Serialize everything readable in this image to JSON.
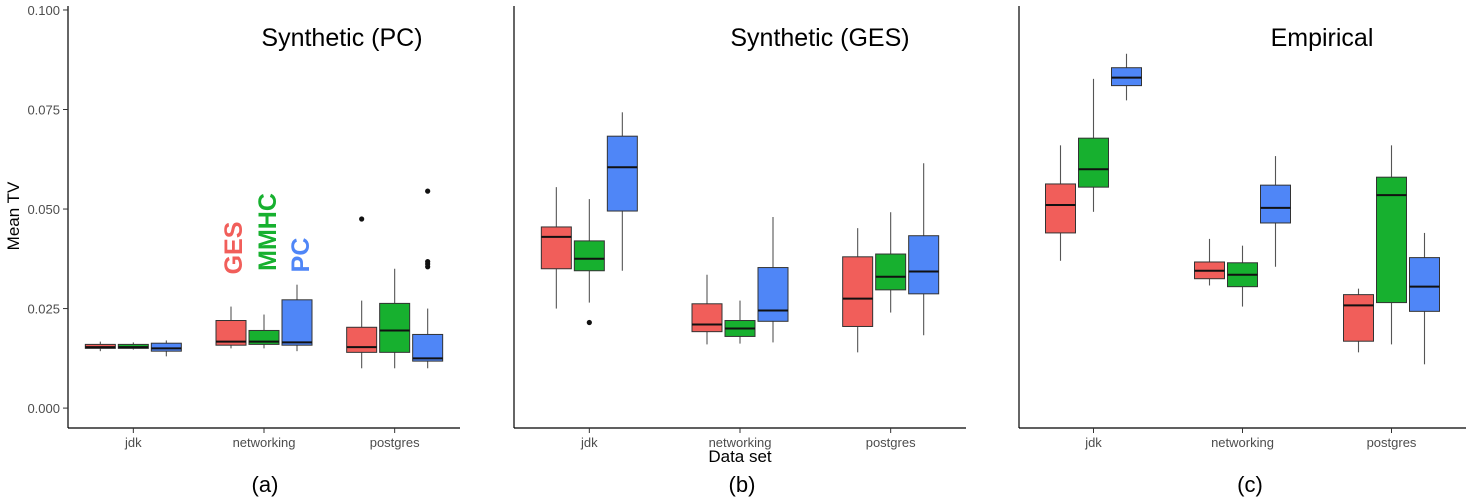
{
  "colors": {
    "GES": "#F15E5A",
    "MMHC": "#17B02F",
    "PC": "#4F86F7"
  },
  "shared": {
    "ylabel": "Mean TV",
    "xlabel": "Data set",
    "categories": [
      "jdk",
      "networking",
      "postgres"
    ],
    "yticks": [
      "0.000",
      "0.025",
      "0.050",
      "0.075",
      "0.100"
    ]
  },
  "legend_labels": [
    "GES",
    "MMHC",
    "PC"
  ],
  "chart_data": [
    {
      "type": "box",
      "title": "Synthetic (PC)",
      "subcaption": "(a)",
      "ylim": [
        -0.005,
        0.101
      ],
      "categories": [
        "jdk",
        "networking",
        "postgres"
      ],
      "series": [
        {
          "name": "GES",
          "boxes": [
            {
              "min": 0.0143,
              "q1": 0.015,
              "median": 0.0153,
              "q3": 0.016,
              "max": 0.0167,
              "outliers": []
            },
            {
              "min": 0.015,
              "q1": 0.0158,
              "median": 0.0167,
              "q3": 0.022,
              "max": 0.0255,
              "outliers": []
            },
            {
              "min": 0.01,
              "q1": 0.014,
              "median": 0.0153,
              "q3": 0.0203,
              "max": 0.027,
              "outliers": [
                0.0475
              ]
            }
          ]
        },
        {
          "name": "MMHC",
          "boxes": [
            {
              "min": 0.0147,
              "q1": 0.015,
              "median": 0.0153,
              "q3": 0.016,
              "max": 0.0165,
              "outliers": []
            },
            {
              "min": 0.015,
              "q1": 0.016,
              "median": 0.0167,
              "q3": 0.0195,
              "max": 0.0235,
              "outliers": []
            },
            {
              "min": 0.01,
              "q1": 0.014,
              "median": 0.0195,
              "q3": 0.0263,
              "max": 0.035,
              "outliers": []
            }
          ]
        },
        {
          "name": "PC",
          "boxes": [
            {
              "min": 0.013,
              "q1": 0.0143,
              "median": 0.015,
              "q3": 0.0163,
              "max": 0.017,
              "outliers": []
            },
            {
              "min": 0.0143,
              "q1": 0.0158,
              "median": 0.0165,
              "q3": 0.0272,
              "max": 0.031,
              "outliers": []
            },
            {
              "min": 0.01,
              "q1": 0.0118,
              "median": 0.0125,
              "q3": 0.0185,
              "max": 0.025,
              "outliers": [
                0.0355,
                0.0362,
                0.0368,
                0.0545
              ]
            }
          ]
        }
      ]
    },
    {
      "type": "box",
      "title": "Synthetic (GES)",
      "subcaption": "(b)",
      "ylim": [
        -0.005,
        0.101
      ],
      "categories": [
        "jdk",
        "networking",
        "postgres"
      ],
      "series": [
        {
          "name": "GES",
          "boxes": [
            {
              "min": 0.025,
              "q1": 0.035,
              "median": 0.043,
              "q3": 0.0455,
              "max": 0.0555,
              "outliers": []
            },
            {
              "min": 0.016,
              "q1": 0.0192,
              "median": 0.021,
              "q3": 0.0262,
              "max": 0.0335,
              "outliers": []
            },
            {
              "min": 0.014,
              "q1": 0.0205,
              "median": 0.0275,
              "q3": 0.038,
              "max": 0.0452,
              "outliers": []
            }
          ]
        },
        {
          "name": "MMHC",
          "boxes": [
            {
              "min": 0.0265,
              "q1": 0.0345,
              "median": 0.0375,
              "q3": 0.042,
              "max": 0.0525,
              "outliers": [
                0.0215
              ]
            },
            {
              "min": 0.0162,
              "q1": 0.018,
              "median": 0.02,
              "q3": 0.022,
              "max": 0.027,
              "outliers": []
            },
            {
              "min": 0.024,
              "q1": 0.0297,
              "median": 0.033,
              "q3": 0.0387,
              "max": 0.0492,
              "outliers": []
            }
          ]
        },
        {
          "name": "PC",
          "boxes": [
            {
              "min": 0.0345,
              "q1": 0.0495,
              "median": 0.0605,
              "q3": 0.0683,
              "max": 0.0743,
              "outliers": []
            },
            {
              "min": 0.0165,
              "q1": 0.0218,
              "median": 0.0245,
              "q3": 0.0353,
              "max": 0.048,
              "outliers": []
            },
            {
              "min": 0.0183,
              "q1": 0.0287,
              "median": 0.0343,
              "q3": 0.0433,
              "max": 0.0615,
              "outliers": []
            }
          ]
        }
      ]
    },
    {
      "type": "box",
      "title": "Empirical",
      "subcaption": "(c)",
      "ylim": [
        -0.005,
        0.101
      ],
      "categories": [
        "jdk",
        "networking",
        "postgres"
      ],
      "series": [
        {
          "name": "GES",
          "boxes": [
            {
              "min": 0.037,
              "q1": 0.044,
              "median": 0.051,
              "q3": 0.0563,
              "max": 0.066,
              "outliers": []
            },
            {
              "min": 0.0308,
              "q1": 0.0325,
              "median": 0.0345,
              "q3": 0.0367,
              "max": 0.0425,
              "outliers": []
            },
            {
              "min": 0.014,
              "q1": 0.0168,
              "median": 0.0258,
              "q3": 0.0285,
              "max": 0.03,
              "outliers": []
            }
          ]
        },
        {
          "name": "MMHC",
          "boxes": [
            {
              "min": 0.0493,
              "q1": 0.0555,
              "median": 0.06,
              "q3": 0.0678,
              "max": 0.0827,
              "outliers": []
            },
            {
              "min": 0.0255,
              "q1": 0.0305,
              "median": 0.0335,
              "q3": 0.0365,
              "max": 0.0408,
              "outliers": []
            },
            {
              "min": 0.016,
              "q1": 0.0265,
              "median": 0.0535,
              "q3": 0.058,
              "max": 0.066,
              "outliers": []
            }
          ]
        },
        {
          "name": "PC",
          "boxes": [
            {
              "min": 0.0773,
              "q1": 0.081,
              "median": 0.083,
              "q3": 0.0855,
              "max": 0.089,
              "outliers": []
            },
            {
              "min": 0.0355,
              "q1": 0.0465,
              "median": 0.0503,
              "q3": 0.056,
              "max": 0.0633,
              "outliers": []
            },
            {
              "min": 0.011,
              "q1": 0.0243,
              "median": 0.0305,
              "q3": 0.0378,
              "max": 0.044,
              "outliers": []
            }
          ]
        }
      ]
    }
  ]
}
